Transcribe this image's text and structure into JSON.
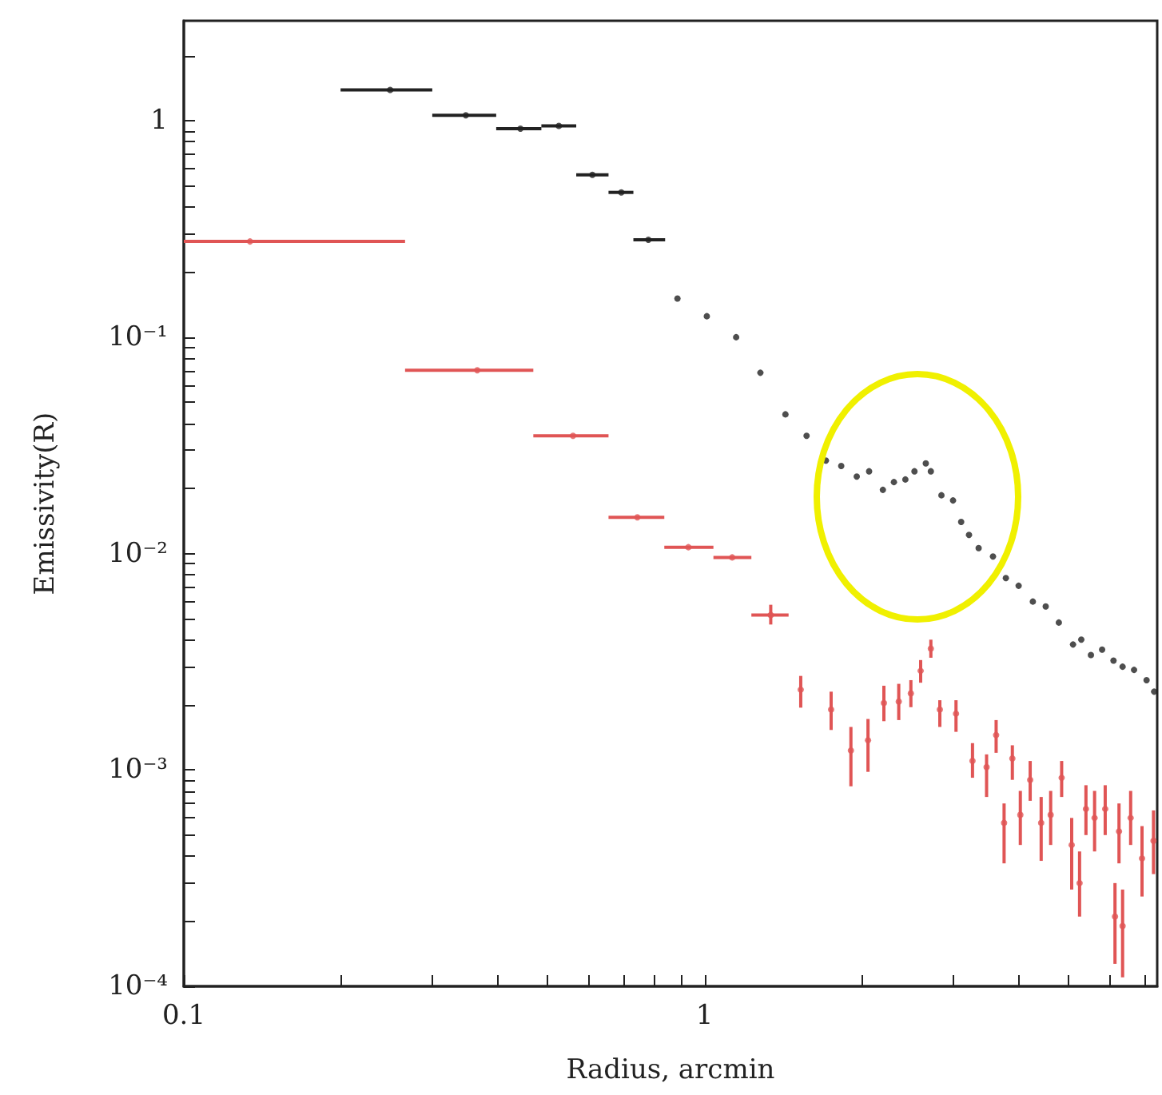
{
  "chart_data": {
    "type": "scatter",
    "xlabel": "Radius, arcmin",
    "ylabel": "Emissivity(R)",
    "log": "xy",
    "grid": false,
    "marker": "circle",
    "xlim": [
      0.1,
      7.4
    ],
    "ylim": [
      0.0001,
      2.9
    ],
    "xticks": [
      0.1,
      {
        "value": 0.2,
        "label": null
      },
      {
        "value": 0.3,
        "label": null
      },
      {
        "value": 0.4,
        "label": null
      },
      {
        "value": 0.5,
        "label": null
      },
      {
        "value": 0.6,
        "label": null
      },
      {
        "value": 0.7,
        "label": null
      },
      {
        "value": 0.8,
        "label": null
      },
      {
        "value": 0.9,
        "label": null
      },
      1,
      {
        "value": 2,
        "label": null
      },
      {
        "value": 3,
        "label": null
      },
      {
        "value": 4,
        "label": null
      },
      {
        "value": 5,
        "label": null
      },
      {
        "value": 6,
        "label": null
      },
      {
        "value": 7,
        "label": null
      }
    ],
    "yticks": [
      {
        "value": 0.0001,
        "label": "10⁻⁴"
      },
      {
        "value": 0.0002,
        "label": null
      },
      {
        "value": 0.0003,
        "label": null
      },
      {
        "value": 0.0004,
        "label": null
      },
      {
        "value": 0.0005,
        "label": null
      },
      {
        "value": 0.0006,
        "label": null
      },
      {
        "value": 0.0007,
        "label": null
      },
      {
        "value": 0.0008,
        "label": null
      },
      {
        "value": 0.0009,
        "label": null
      },
      {
        "value": 0.001,
        "label": "10⁻³"
      },
      {
        "value": 0.002,
        "label": null
      },
      {
        "value": 0.003,
        "label": null
      },
      {
        "value": 0.004,
        "label": null
      },
      {
        "value": 0.005,
        "label": null
      },
      {
        "value": 0.006,
        "label": null
      },
      {
        "value": 0.007,
        "label": null
      },
      {
        "value": 0.008,
        "label": null
      },
      {
        "value": 0.009,
        "label": null
      },
      {
        "value": 0.01,
        "label": "10⁻²"
      },
      {
        "value": 0.02,
        "label": null
      },
      {
        "value": 0.03,
        "label": null
      },
      {
        "value": 0.04,
        "label": null
      },
      {
        "value": 0.05,
        "label": null
      },
      {
        "value": 0.06,
        "label": null
      },
      {
        "value": 0.07,
        "label": null
      },
      {
        "value": 0.08,
        "label": null
      },
      {
        "value": 0.09,
        "label": null
      },
      {
        "value": 0.1,
        "label": "10⁻¹"
      },
      {
        "value": 0.2,
        "label": null
      },
      {
        "value": 0.3,
        "label": null
      },
      {
        "value": 0.4,
        "label": null
      },
      {
        "value": 0.5,
        "label": null
      },
      {
        "value": 0.6,
        "label": null
      },
      {
        "value": 0.7,
        "label": null
      },
      {
        "value": 0.8,
        "label": null
      },
      {
        "value": 0.9,
        "label": null
      },
      1,
      {
        "value": 2,
        "label": null
      }
    ],
    "series": [
      {
        "color": "#222222",
        "x": [
          0.249,
          0.348,
          0.443,
          0.525,
          0.609,
          0.692,
          0.78,
          0.887,
          1.01,
          1.15,
          1.28,
          1.43,
          1.57,
          1.71,
          1.83,
          1.96,
          2.07,
          2.2,
          2.31,
          2.43,
          2.53,
          2.66,
          2.72,
          2.85,
          3.0,
          3.11,
          3.22,
          3.36,
          3.58,
          3.79,
          4.01,
          4.27,
          4.52,
          4.79,
          5.1,
          5.29,
          5.52,
          5.8,
          6.1,
          6.35,
          6.68,
          7.06,
          7.3
        ],
        "values": [
          1.39,
          1.06,
          0.92,
          0.947,
          0.563,
          0.467,
          0.282,
          0.151,
          0.125,
          0.1,
          0.0685,
          0.044,
          0.035,
          0.0269,
          0.0254,
          0.0227,
          0.024,
          0.0197,
          0.0214,
          0.022,
          0.024,
          0.0261,
          0.024,
          0.0186,
          0.0176,
          0.014,
          0.0122,
          0.0106,
          0.0097,
          0.0077,
          0.0071,
          0.006,
          0.0057,
          0.0048,
          0.0038,
          0.004,
          0.0034,
          0.0036,
          0.0032,
          0.003,
          0.0029,
          0.0026,
          0.0023
        ],
        "xerrors": [
          [
            0.2,
            0.3
          ],
          [
            0.3,
            0.398
          ],
          [
            0.398,
            0.486
          ],
          [
            0.486,
            0.567
          ],
          [
            0.567,
            0.654
          ],
          [
            0.654,
            0.73
          ],
          [
            0.73,
            0.84
          ],
          null,
          null,
          null,
          null,
          null,
          null,
          null,
          null,
          null,
          null,
          null,
          null,
          null,
          null,
          null,
          null,
          null,
          null,
          null,
          null,
          null,
          null,
          null,
          null,
          null,
          null,
          null,
          null,
          null,
          null,
          null,
          null,
          null,
          null,
          null,
          null
        ]
      },
      {
        "color": "#e05555",
        "x": [
          0.134,
          0.366,
          0.559,
          0.743,
          0.931,
          1.13,
          1.34,
          1.53,
          1.75,
          1.91,
          2.06,
          2.21,
          2.36,
          2.49,
          2.6,
          2.72,
          2.83,
          3.04,
          3.27,
          3.48,
          3.63,
          3.9,
          3.76,
          4.04,
          4.22,
          4.43,
          4.62,
          4.85,
          5.07,
          5.25,
          5.4,
          5.61,
          5.88,
          6.14,
          6.35,
          6.25,
          6.58,
          6.92,
          7.28
        ],
        "values": [
          0.277,
          0.0703,
          0.035,
          0.0147,
          0.0107,
          0.0096,
          0.0052,
          0.00235,
          0.0019,
          0.00123,
          0.00137,
          0.00204,
          0.00207,
          0.00226,
          0.00287,
          0.00364,
          0.0019,
          0.00182,
          0.0011,
          0.00103,
          0.00145,
          0.00113,
          0.00057,
          0.00062,
          0.0009,
          0.00057,
          0.00062,
          0.00092,
          0.00045,
          0.0003,
          0.00066,
          0.0006,
          0.00066,
          0.00021,
          0.00019,
          0.00052,
          0.0006,
          0.00039,
          0.00047
        ],
        "xerrors": [
          [
            0.1,
            0.266
          ],
          [
            0.266,
            0.469
          ],
          [
            0.469,
            0.654
          ],
          [
            0.654,
            0.837
          ],
          [
            0.837,
            1.04
          ],
          [
            1.04,
            1.23
          ],
          [
            1.23,
            1.45
          ],
          null,
          null,
          null,
          null,
          null,
          null,
          null,
          null,
          null,
          null,
          null,
          null,
          null,
          null,
          null,
          null,
          null,
          null,
          null,
          null,
          null,
          null,
          null,
          null,
          null,
          null,
          null,
          null,
          null,
          null,
          null,
          null
        ],
        "errors": [
          null,
          null,
          null,
          null,
          null,
          null,
          [
            0.0047,
            0.0058
          ],
          [
            0.00194,
            0.00272
          ],
          [
            0.00153,
            0.0023
          ],
          [
            0.00084,
            0.00158
          ],
          [
            0.00098,
            0.00172
          ],
          [
            0.00168,
            0.00245
          ],
          [
            0.0017,
            0.0025
          ],
          [
            0.00195,
            0.0026
          ],
          [
            0.00253,
            0.00322
          ],
          [
            0.0033,
            0.004
          ],
          [
            0.00158,
            0.0021
          ],
          [
            0.0015,
            0.0021
          ],
          [
            0.00092,
            0.00133
          ],
          [
            0.00075,
            0.00118
          ],
          [
            0.0012,
            0.0017
          ],
          [
            0.0009,
            0.0013
          ],
          [
            0.00037,
            0.0007
          ],
          [
            0.00045,
            0.0008
          ],
          [
            0.00072,
            0.0011
          ],
          [
            0.00038,
            0.00075
          ],
          [
            0.00045,
            0.0008
          ],
          [
            0.00075,
            0.0011
          ],
          [
            0.00028,
            0.0006
          ],
          [
            0.00021,
            0.00042
          ],
          [
            0.0005,
            0.00085
          ],
          [
            0.00042,
            0.0008
          ],
          [
            0.0005,
            0.00085
          ],
          [
            0.000127,
            0.0003
          ],
          [
            0.00011,
            0.00028
          ],
          [
            0.00037,
            0.0007
          ],
          [
            0.00045,
            0.0008
          ],
          [
            0.00026,
            0.00055
          ],
          [
            0.00033,
            0.00065
          ]
        ]
      }
    ]
  }
}
